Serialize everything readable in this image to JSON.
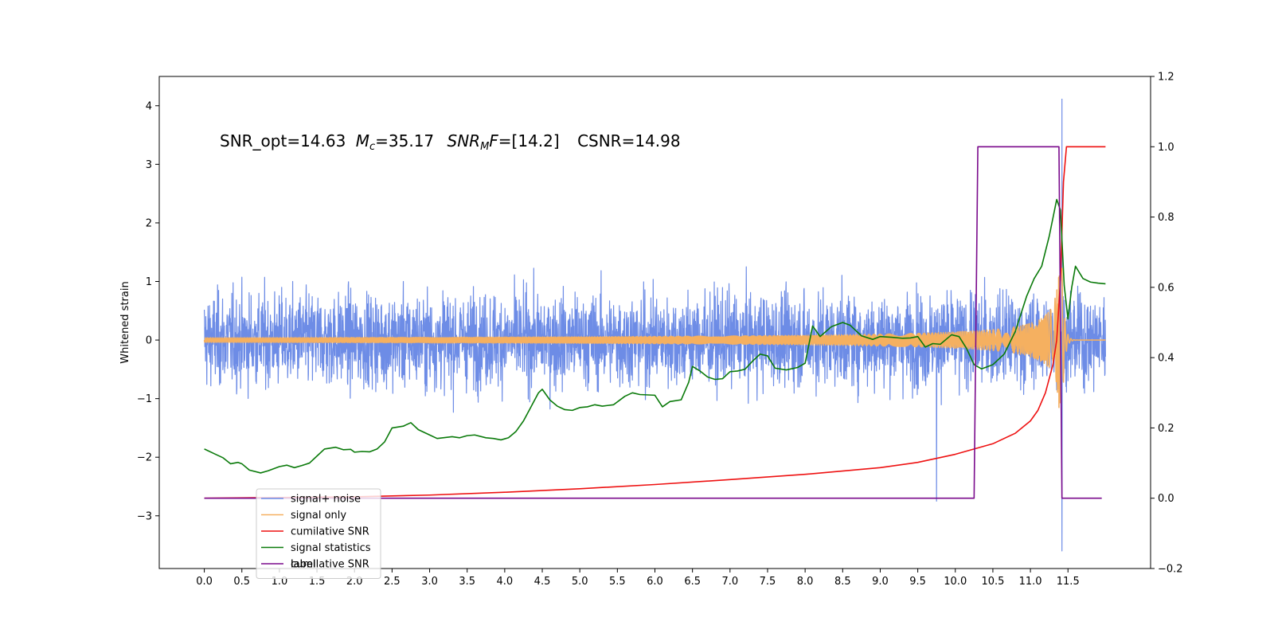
{
  "chart_data": {
    "type": "line",
    "title": "",
    "xlabel": "",
    "ylabel": "Whitened strain",
    "xlim": [
      -0.6,
      12.6
    ],
    "ylim": [
      -3.9,
      4.5
    ],
    "y2lim": [
      -0.2,
      1.2
    ],
    "xticks": [
      0.0,
      0.5,
      1.0,
      1.5,
      2.0,
      2.5,
      3.0,
      3.5,
      4.0,
      4.5,
      5.0,
      5.5,
      6.0,
      6.5,
      7.0,
      7.5,
      8.0,
      8.5,
      9.0,
      9.5,
      10.0,
      10.5,
      11.0,
      11.5
    ],
    "xtick_labels": [
      "0.0",
      "0.5",
      "1.0",
      "1.5",
      "2.0",
      "2.5",
      "3.0",
      "3.5",
      "4.0",
      "4.5",
      "5.0",
      "5.5",
      "6.0",
      "6.5",
      "7.0",
      "7.5",
      "8.0",
      "8.5",
      "9.0",
      "9.5",
      "10.0",
      "10.5",
      "11.0",
      "11.5"
    ],
    "yticks": [
      -3,
      -2,
      -1,
      0,
      1,
      2,
      3,
      4
    ],
    "ytick_labels": [
      "−3",
      "−2",
      "−1",
      "0",
      "1",
      "2",
      "3",
      "4"
    ],
    "y2ticks": [
      -0.2,
      0.0,
      0.2,
      0.4,
      0.6,
      0.8,
      1.0,
      1.2
    ],
    "y2tick_labels": [
      "−0.2",
      "0.0",
      "0.2",
      "0.4",
      "0.6",
      "0.8",
      "1.0",
      "1.2"
    ],
    "annotation": {
      "snr_opt": "SNR_opt=14.63",
      "mc_symbol": "M",
      "mc_sub": "c",
      "mc_value": "=35.17",
      "snrmf_symbol": "SNR",
      "snrmf_sub": "M",
      "snrmf_f": "F",
      "snrmf_value": "=[14.2]",
      "csnr": "CSNR=14.98"
    },
    "legend": {
      "placement": "lower-left",
      "entries": [
        "signal+ noise",
        "signal only",
        "cumilative SNR",
        "signal statistics",
        "label"
      ],
      "hidden_entry": "cumilative SNR"
    },
    "series": [
      {
        "name": "signal+ noise",
        "axis": "left",
        "color": "#6d8ce6",
        "kind": "noise",
        "x_range": [
          0.0,
          12.0
        ],
        "approx_amplitude_range": [
          -2.5,
          2.8
        ],
        "extreme_spikes": [
          [
            9.75,
            -2.75
          ],
          [
            11.42,
            4.12
          ],
          [
            11.42,
            -3.6
          ]
        ]
      },
      {
        "name": "signal only",
        "axis": "left",
        "color": "#f5b060",
        "kind": "chirp",
        "x_range": [
          0.0,
          12.0
        ],
        "peak_time": 11.42,
        "peak_amplitude": 1.4
      },
      {
        "name": "cumilative SNR",
        "axis": "right",
        "color": "#ee1111",
        "x": [
          0.0,
          1.0,
          2.0,
          3.0,
          4.0,
          5.0,
          6.0,
          7.0,
          8.0,
          9.0,
          9.5,
          10.0,
          10.5,
          10.8,
          11.0,
          11.1,
          11.2,
          11.3,
          11.35,
          11.4,
          11.44,
          11.48,
          12.0
        ],
        "y": [
          0.0,
          0.002,
          0.004,
          0.009,
          0.017,
          0.027,
          0.039,
          0.053,
          0.068,
          0.087,
          0.102,
          0.125,
          0.155,
          0.185,
          0.22,
          0.25,
          0.3,
          0.38,
          0.45,
          0.62,
          0.9,
          1.0,
          1.0
        ]
      },
      {
        "name": "signal statistics",
        "axis": "right",
        "color": "#0a7a0a",
        "x": [
          0.0,
          0.15,
          0.25,
          0.35,
          0.45,
          0.5,
          0.6,
          0.75,
          0.85,
          1.0,
          1.1,
          1.2,
          1.3,
          1.4,
          1.5,
          1.6,
          1.75,
          1.85,
          1.95,
          2.0,
          2.1,
          2.2,
          2.3,
          2.4,
          2.5,
          2.65,
          2.75,
          2.85,
          3.0,
          3.1,
          3.3,
          3.4,
          3.5,
          3.6,
          3.75,
          3.85,
          3.95,
          4.05,
          4.15,
          4.25,
          4.35,
          4.45,
          4.5,
          4.6,
          4.7,
          4.8,
          4.9,
          5.0,
          5.1,
          5.2,
          5.3,
          5.45,
          5.6,
          5.7,
          5.8,
          6.0,
          6.1,
          6.2,
          6.35,
          6.45,
          6.5,
          6.6,
          6.7,
          6.8,
          6.9,
          7.0,
          7.1,
          7.2,
          7.3,
          7.4,
          7.5,
          7.6,
          7.75,
          7.9,
          8.0,
          8.1,
          8.2,
          8.35,
          8.5,
          8.6,
          8.75,
          8.9,
          9.0,
          9.15,
          9.3,
          9.4,
          9.5,
          9.6,
          9.7,
          9.8,
          9.95,
          10.05,
          10.15,
          10.25,
          10.35,
          10.5,
          10.65,
          10.8,
          10.95,
          11.05,
          11.15,
          11.25,
          11.35,
          11.4,
          11.45,
          11.5,
          11.55,
          11.6,
          11.7,
          11.8,
          11.9,
          12.0
        ],
        "y": [
          0.14,
          0.125,
          0.115,
          0.098,
          0.102,
          0.098,
          0.08,
          0.072,
          0.078,
          0.09,
          0.094,
          0.087,
          0.093,
          0.1,
          0.12,
          0.14,
          0.145,
          0.138,
          0.139,
          0.131,
          0.133,
          0.132,
          0.14,
          0.16,
          0.2,
          0.205,
          0.215,
          0.195,
          0.18,
          0.17,
          0.175,
          0.172,
          0.178,
          0.18,
          0.172,
          0.17,
          0.166,
          0.172,
          0.19,
          0.22,
          0.26,
          0.3,
          0.31,
          0.28,
          0.262,
          0.252,
          0.25,
          0.258,
          0.26,
          0.266,
          0.262,
          0.266,
          0.29,
          0.3,
          0.295,
          0.293,
          0.26,
          0.275,
          0.28,
          0.33,
          0.375,
          0.362,
          0.345,
          0.338,
          0.34,
          0.36,
          0.362,
          0.367,
          0.39,
          0.41,
          0.405,
          0.37,
          0.365,
          0.372,
          0.384,
          0.49,
          0.46,
          0.488,
          0.5,
          0.492,
          0.462,
          0.452,
          0.46,
          0.458,
          0.455,
          0.456,
          0.46,
          0.43,
          0.44,
          0.438,
          0.465,
          0.46,
          0.426,
          0.38,
          0.368,
          0.38,
          0.41,
          0.475,
          0.575,
          0.625,
          0.66,
          0.745,
          0.85,
          0.82,
          0.605,
          0.51,
          0.6,
          0.66,
          0.625,
          0.615,
          0.612,
          0.61
        ]
      },
      {
        "name": "label",
        "axis": "right",
        "color": "#7a0a8c",
        "x": [
          0.0,
          10.25,
          10.3,
          11.38,
          11.42,
          11.95
        ],
        "y": [
          0.0,
          0.0,
          1.0,
          1.0,
          0.0,
          0.0
        ]
      }
    ]
  }
}
